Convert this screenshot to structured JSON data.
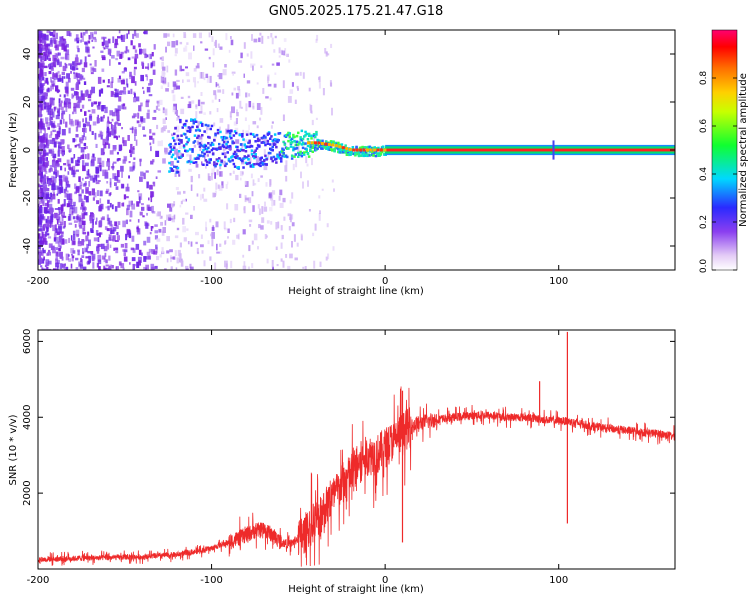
{
  "title": "GN05.2025.175.21.47.G18",
  "colors": {
    "snr_line": "#ee2a2a",
    "spectrum_low": "#7a1fe0",
    "spectrum_mid": "#2ee0a0",
    "spectrum_high": "#ff1a1a"
  },
  "chart_data": [
    {
      "type": "heatmap",
      "xlabel": "Height of straight line (km)",
      "ylabel": "Frequency (Hz)",
      "xlim": [
        -200,
        167
      ],
      "ylim": [
        -50,
        50
      ],
      "x_ticks": [
        -200,
        -100,
        0,
        100
      ],
      "x_tick_labels": [
        "-200",
        "-100",
        "0",
        "100"
      ],
      "y_ticks": [
        -40,
        -20,
        0,
        20,
        40
      ],
      "y_tick_labels": [
        "-40",
        "-20",
        "0",
        "20",
        "40"
      ],
      "colorbar": {
        "label": "Normalized spectral amplitude",
        "range": [
          0,
          1
        ],
        "ticks": [
          0,
          0.2,
          0.4,
          0.6,
          0.8
        ],
        "tick_labels": [
          "0.0",
          "0.2",
          "0.4",
          "0.6",
          "0.8"
        ]
      },
      "ridge": [
        {
          "x": -120,
          "f": 5
        },
        {
          "x": -110,
          "f": 4
        },
        {
          "x": -100,
          "f": 2
        },
        {
          "x": -90,
          "f": 1
        },
        {
          "x": -80,
          "f": 0
        },
        {
          "x": -70,
          "f": 1
        },
        {
          "x": -60,
          "f": 2
        },
        {
          "x": -50,
          "f": 3
        },
        {
          "x": -40,
          "f": 3
        },
        {
          "x": -30,
          "f": 2
        },
        {
          "x": -20,
          "f": 0
        },
        {
          "x": -10,
          "f": 0
        },
        {
          "x": 0,
          "f": 0
        },
        {
          "x": 50,
          "f": 0
        },
        {
          "x": 100,
          "f": 0
        },
        {
          "x": 167,
          "f": 0
        }
      ],
      "notes": "Broadband noise below about -100 km; coherent tone near 0 Hz from -60 km upward"
    },
    {
      "type": "line",
      "xlabel": "Height of straight line (km)",
      "ylabel": "SNR (10 * v/v)",
      "xlim": [
        -200,
        167
      ],
      "ylim": [
        0,
        6300
      ],
      "x_ticks": [
        -200,
        -100,
        0,
        100
      ],
      "x_tick_labels": [
        "-200",
        "-100",
        "0",
        "100"
      ],
      "y_ticks": [
        2000,
        4000,
        6000
      ],
      "y_tick_labels": [
        "2000",
        "4000",
        "6000"
      ],
      "series": [
        {
          "x": [
            -200,
            -180,
            -160,
            -140,
            -120,
            -110,
            -100,
            -90,
            -80,
            -75,
            -70,
            -65,
            -60,
            -55,
            -50,
            -45,
            -40,
            -35,
            -30,
            -25,
            -20,
            -15,
            -10,
            -5,
            0,
            5,
            10,
            15,
            20,
            30,
            40,
            50,
            60,
            70,
            80,
            90,
            100,
            105,
            110,
            120,
            130,
            140,
            150,
            160,
            167
          ],
          "y": [
            250,
            280,
            300,
            320,
            380,
            450,
            550,
            700,
            900,
            1000,
            1050,
            900,
            700,
            650,
            800,
            1000,
            1300,
            1600,
            1900,
            2200,
            2500,
            2800,
            3000,
            3000,
            3200,
            3400,
            3600,
            3750,
            3850,
            3950,
            4000,
            4050,
            4050,
            4000,
            4000,
            3950,
            3900,
            3900,
            3850,
            3750,
            3700,
            3650,
            3600,
            3550,
            3500
          ]
        }
      ],
      "spikes": [
        {
          "x": 105,
          "y": 6250
        },
        {
          "x": 105,
          "y": 1200
        },
        {
          "x": 10,
          "y": 4700
        },
        {
          "x": 10,
          "y": 700
        },
        {
          "x": 89,
          "y": 4950
        }
      ]
    }
  ]
}
